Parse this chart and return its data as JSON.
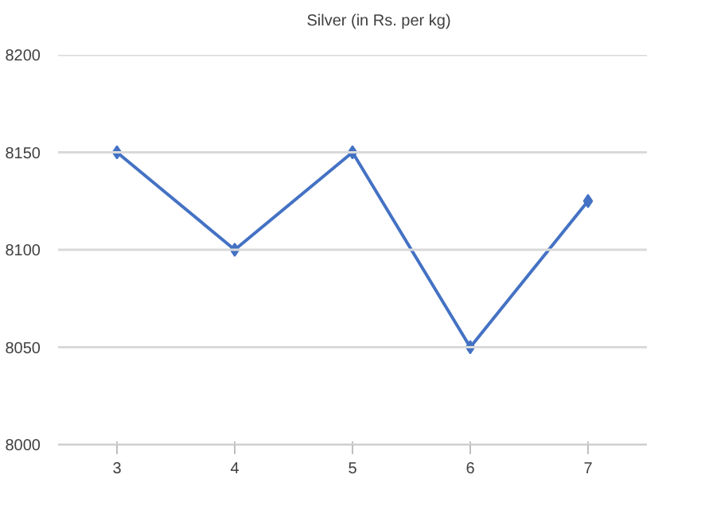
{
  "chart_data": {
    "type": "line",
    "categories": [
      "3",
      "4",
      "5",
      "6",
      "7"
    ],
    "series": [
      {
        "name": "Silver (in Rs. per kg)",
        "color": "#4472c4",
        "values": [
          8150,
          8100,
          8150,
          8050,
          8125
        ]
      }
    ],
    "ylim": [
      8000,
      8200
    ],
    "yticks": [
      8000,
      8050,
      8100,
      8150,
      8200
    ],
    "grid": "y",
    "legend": "top",
    "marker": "diamond",
    "line_style": "solid"
  }
}
